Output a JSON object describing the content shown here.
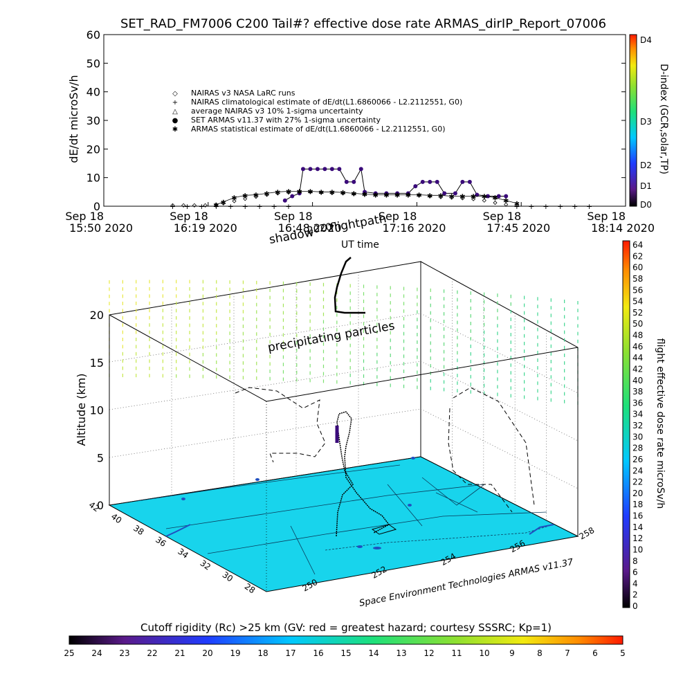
{
  "title": "SET_RAD_FM7006   C200 Tail#? effective dose rate ARMAS_dirIP_Report_07006",
  "chart_data": [
    {
      "type": "scatter",
      "panel": "time-series",
      "ylabel": "dE/dt microSv/h",
      "ylim": [
        0,
        60
      ],
      "y_ticks": [
        "60",
        "50",
        "40",
        "30",
        "20",
        "10",
        "0"
      ],
      "x_ticks": [
        {
          "date": "Sep 18",
          "time": "15:50 2020"
        },
        {
          "date": "Sep 18",
          "time": "16:19 2020"
        },
        {
          "date": "Sep 18",
          "time": "16:48 2020"
        },
        {
          "date": "Sep 18",
          "time": "17:16 2020"
        },
        {
          "date": "Sep 18",
          "time": "17:45 2020"
        },
        {
          "date": "Sep 18",
          "time": "18:14 2020"
        }
      ],
      "legend": [
        {
          "symbol": "◇",
          "label": "NAIRAS v3 NASA LaRC runs"
        },
        {
          "symbol": "+",
          "label": "NAIRAS climatological estimate of dE/dt(L1.6860066 - L2.2112551, G0)"
        },
        {
          "symbol": "△",
          "label": "average NAIRAS v3 10% 1-sigma uncertainty"
        },
        {
          "symbol": "●",
          "label": "SET ARMAS v11.37 with 27% 1-sigma uncertainty",
          "color": "#2a2ad8"
        },
        {
          "symbol": "✱",
          "label": "ARMAS statistical estimate of dE/dt(L1.6860066 - L2.2112551, G0)"
        }
      ],
      "series": [
        {
          "name": "SET ARMAS v11.37 with 27% 1-sigma uncertainty",
          "color": "#3a0a7a",
          "points": [
            {
              "t": "16:40",
              "y": 2.0
            },
            {
              "t": "16:42",
              "y": 3.5
            },
            {
              "t": "16:44",
              "y": 4.5
            },
            {
              "t": "16:45",
              "y": 13.0
            },
            {
              "t": "16:47",
              "y": 13.0
            },
            {
              "t": "16:49",
              "y": 13.0
            },
            {
              "t": "16:51",
              "y": 13.0
            },
            {
              "t": "16:53",
              "y": 13.0
            },
            {
              "t": "16:55",
              "y": 13.0
            },
            {
              "t": "16:57",
              "y": 8.5
            },
            {
              "t": "16:59",
              "y": 8.5
            },
            {
              "t": "17:01",
              "y": 13.0
            },
            {
              "t": "17:02",
              "y": 5.0
            },
            {
              "t": "17:05",
              "y": 4.5
            },
            {
              "t": "17:08",
              "y": 4.5
            },
            {
              "t": "17:11",
              "y": 4.5
            },
            {
              "t": "17:14",
              "y": 4.5
            },
            {
              "t": "17:16",
              "y": 7.0
            },
            {
              "t": "17:18",
              "y": 8.5
            },
            {
              "t": "17:20",
              "y": 8.5
            },
            {
              "t": "17:22",
              "y": 8.5
            },
            {
              "t": "17:24",
              "y": 4.5
            },
            {
              "t": "17:27",
              "y": 4.5
            },
            {
              "t": "17:29",
              "y": 8.5
            },
            {
              "t": "17:31",
              "y": 8.5
            },
            {
              "t": "17:33",
              "y": 4.0
            },
            {
              "t": "17:36",
              "y": 3.5
            },
            {
              "t": "17:39",
              "y": 3.5
            },
            {
              "t": "17:41",
              "y": 3.5
            }
          ]
        },
        {
          "name": "ARMAS statistical estimate of dE/dt(L1.6860066 - L2.2112551, G0)",
          "color": "#000000",
          "points": [
            {
              "t": "16:21",
              "y": 0.5
            },
            {
              "t": "16:23",
              "y": 1.5
            },
            {
              "t": "16:26",
              "y": 3.0
            },
            {
              "t": "16:29",
              "y": 3.8
            },
            {
              "t": "16:32",
              "y": 4.0
            },
            {
              "t": "16:35",
              "y": 4.5
            },
            {
              "t": "16:38",
              "y": 5.0
            },
            {
              "t": "16:41",
              "y": 5.2
            },
            {
              "t": "16:44",
              "y": 5.2
            },
            {
              "t": "16:47",
              "y": 5.2
            },
            {
              "t": "16:50",
              "y": 5.0
            },
            {
              "t": "16:53",
              "y": 5.0
            },
            {
              "t": "16:56",
              "y": 4.8
            },
            {
              "t": "16:59",
              "y": 4.5
            },
            {
              "t": "17:02",
              "y": 4.2
            },
            {
              "t": "17:05",
              "y": 4.0
            },
            {
              "t": "17:08",
              "y": 4.0
            },
            {
              "t": "17:11",
              "y": 4.0
            },
            {
              "t": "17:14",
              "y": 4.0
            },
            {
              "t": "17:17",
              "y": 4.0
            },
            {
              "t": "17:20",
              "y": 3.8
            },
            {
              "t": "17:23",
              "y": 3.8
            },
            {
              "t": "17:26",
              "y": 3.5
            },
            {
              "t": "17:29",
              "y": 3.5
            },
            {
              "t": "17:32",
              "y": 3.5
            },
            {
              "t": "17:35",
              "y": 3.5
            },
            {
              "t": "17:38",
              "y": 3.0
            },
            {
              "t": "17:41",
              "y": 2.0
            },
            {
              "t": "17:44",
              "y": 1.0
            }
          ]
        },
        {
          "name": "NAIRAS v3 NASA LaRC runs",
          "color": "#000000",
          "points": [
            {
              "t": "16:09",
              "y": 0.3
            },
            {
              "t": "16:12",
              "y": 0.3
            },
            {
              "t": "16:15",
              "y": 0.3
            },
            {
              "t": "16:18",
              "y": 0.3
            },
            {
              "t": "16:21",
              "y": 0.5
            },
            {
              "t": "16:23",
              "y": 1.0
            },
            {
              "t": "16:26",
              "y": 1.8
            },
            {
              "t": "16:29",
              "y": 2.6
            },
            {
              "t": "16:32",
              "y": 3.3
            },
            {
              "t": "16:35",
              "y": 4.0
            },
            {
              "t": "16:38",
              "y": 4.5
            },
            {
              "t": "16:41",
              "y": 4.8
            },
            {
              "t": "16:44",
              "y": 5.0
            },
            {
              "t": "16:47",
              "y": 5.0
            },
            {
              "t": "16:50",
              "y": 4.8
            },
            {
              "t": "16:53",
              "y": 4.6
            },
            {
              "t": "16:56",
              "y": 4.5
            },
            {
              "t": "16:59",
              "y": 4.3
            },
            {
              "t": "17:02",
              "y": 4.2
            },
            {
              "t": "17:05",
              "y": 4.0
            },
            {
              "t": "17:08",
              "y": 4.0
            },
            {
              "t": "17:11",
              "y": 4.0
            },
            {
              "t": "17:14",
              "y": 4.0
            },
            {
              "t": "17:17",
              "y": 3.8
            },
            {
              "t": "17:20",
              "y": 3.5
            },
            {
              "t": "17:23",
              "y": 3.2
            },
            {
              "t": "17:26",
              "y": 3.0
            },
            {
              "t": "17:29",
              "y": 2.8
            },
            {
              "t": "17:32",
              "y": 2.5
            },
            {
              "t": "17:35",
              "y": 2.0
            },
            {
              "t": "17:38",
              "y": 1.2
            },
            {
              "t": "17:41",
              "y": 0.6
            },
            {
              "t": "17:44",
              "y": 0.3
            }
          ]
        },
        {
          "name": "NAIRAS climatological estimate of dE/dt(L1.6860066 - L2.2112551, G0)",
          "color": "#000000",
          "points": [
            {
              "t": "16:09",
              "y": 0.0
            },
            {
              "t": "16:13",
              "y": 0.0
            },
            {
              "t": "16:17",
              "y": 0.0
            },
            {
              "t": "16:21",
              "y": 0.0
            },
            {
              "t": "16:25",
              "y": 0.0
            },
            {
              "t": "16:29",
              "y": 0.0
            },
            {
              "t": "16:33",
              "y": 0.0
            },
            {
              "t": "16:37",
              "y": 0.0
            },
            {
              "t": "16:41",
              "y": 0.0
            },
            {
              "t": "17:44",
              "y": 0.0
            },
            {
              "t": "17:48",
              "y": 0.0
            },
            {
              "t": "17:52",
              "y": 0.0
            },
            {
              "t": "17:56",
              "y": 0.0
            },
            {
              "t": "18:00",
              "y": 0.0
            },
            {
              "t": "18:04",
              "y": 0.0
            }
          ]
        }
      ],
      "colorbar": {
        "label": "D-index (GCR,solar,TP)",
        "ticks": [
          "D4",
          "D3",
          "D2",
          "D1",
          "D0"
        ]
      }
    },
    {
      "type": "scatter3d",
      "panel": "flight-path",
      "zlabel": "Altitude (km)",
      "z_ticks": [
        "20",
        "15",
        "10",
        "5",
        "0"
      ],
      "lat_ticks": [
        "42",
        "40",
        "38",
        "36",
        "34",
        "32",
        "30",
        "28"
      ],
      "lon_ticks": [
        "250",
        "252",
        "254",
        "256",
        "258"
      ],
      "annotations": [
        "shadow",
        "2020",
        "flightpath",
        "UT time",
        "precipitating particles"
      ],
      "footer": "Space Environment Technologies ARMAS v11.37",
      "colorbar": {
        "label": "flight effective dose rate microSv/h",
        "ticks": [
          "64",
          "62",
          "60",
          "58",
          "56",
          "54",
          "52",
          "50",
          "48",
          "46",
          "44",
          "42",
          "40",
          "38",
          "36",
          "34",
          "32",
          "30",
          "28",
          "26",
          "24",
          "22",
          "20",
          "18",
          "16",
          "14",
          "12",
          "10",
          "8",
          "6",
          "4",
          "2",
          "0"
        ]
      }
    }
  ],
  "bottom_colorbar": {
    "label": "Cutoff rigidity (Rc) >25 km (GV: red = greatest hazard; courtesy SSSRC; Kp=1)",
    "ticks": [
      "25",
      "24",
      "23",
      "22",
      "21",
      "20",
      "19",
      "18",
      "17",
      "16",
      "15",
      "14",
      "13",
      "12",
      "11",
      "10",
      "9",
      "8",
      "7",
      "6",
      "5"
    ]
  }
}
